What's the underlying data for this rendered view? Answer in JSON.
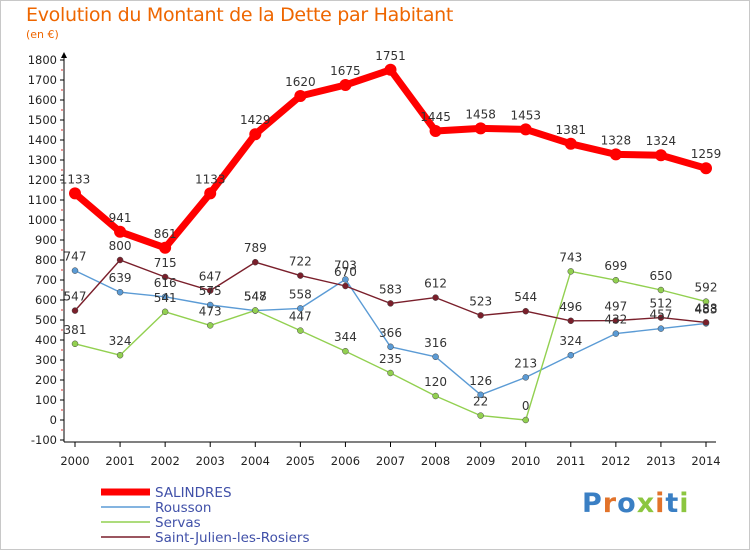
{
  "title": "Evolution du Montant de la Dette par Habitant",
  "unit": "(en €)",
  "logo": {
    "text": "Proxiti",
    "colors": [
      "#3a7fc4",
      "#e2732a",
      "#3a7fc4",
      "#8cc63f",
      "#e2732a",
      "#3a7fc4",
      "#8cc63f"
    ]
  },
  "chart_data": {
    "type": "line",
    "title": "Evolution du Montant de la Dette par Habitant",
    "ylabel": "(en €)",
    "xlabel": "",
    "x": [
      "2000",
      "2001",
      "2002",
      "2003",
      "2004",
      "2005",
      "2006",
      "2007",
      "2008",
      "2009",
      "2010",
      "2011",
      "2012",
      "2013",
      "2014"
    ],
    "ylim": [
      -100,
      1800
    ],
    "yticks": [
      -100,
      0,
      100,
      200,
      300,
      400,
      500,
      600,
      700,
      800,
      900,
      1000,
      1100,
      1200,
      1300,
      1400,
      1500,
      1600,
      1700,
      1800
    ],
    "grid": false,
    "legend": "bottom-left",
    "series": [
      {
        "name": "SALINDRES",
        "color": "#ff0000",
        "width": 7,
        "label_offset": -1,
        "values": [
          1133,
          941,
          861,
          1133,
          1429,
          1620,
          1675,
          1751,
          1445,
          1458,
          1453,
          1381,
          1328,
          1324,
          1259
        ]
      },
      {
        "name": "Rousson",
        "color": "#5b9bd5",
        "width": 1.4,
        "label_offset": -1,
        "values": [
          747,
          639,
          616,
          575,
          547,
          558,
          703,
          366,
          316,
          126,
          213,
          324,
          432,
          457,
          483
        ]
      },
      {
        "name": "Servas",
        "color": "#92d050",
        "width": 1.4,
        "label_offset": -1,
        "values": [
          381,
          324,
          541,
          473,
          548,
          447,
          344,
          235,
          120,
          22,
          0,
          743,
          699,
          650,
          592
        ]
      },
      {
        "name": "Saint-Julien-les-Rosiers",
        "color": "#7a1f2b",
        "width": 1.4,
        "label_offset": -1,
        "values": [
          547,
          800,
          715,
          647,
          789,
          722,
          670,
          583,
          612,
          523,
          544,
          496,
          497,
          512,
          488
        ]
      }
    ]
  }
}
